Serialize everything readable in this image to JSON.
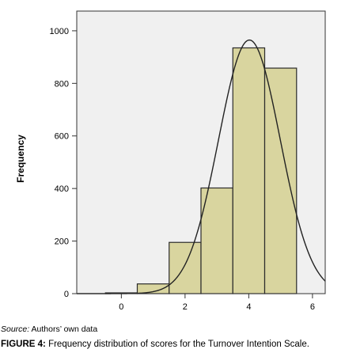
{
  "chart_data": {
    "type": "bar",
    "subtype": "histogram",
    "bins": [
      {
        "center": 0,
        "value": 3
      },
      {
        "center": 1,
        "value": 37
      },
      {
        "center": 2,
        "value": 195
      },
      {
        "center": 3,
        "value": 402
      },
      {
        "center": 4,
        "value": 935
      },
      {
        "center": 5,
        "value": 858
      }
    ],
    "bin_width": 1,
    "normal_curve": {
      "mean": 4.02,
      "sd": 0.97,
      "peak": 965
    },
    "xlim": [
      -1.4,
      6.4
    ],
    "ylim": [
      0,
      1075
    ],
    "x_ticks": [
      0,
      2,
      4,
      6
    ],
    "y_ticks": [
      0,
      200,
      400,
      600,
      800,
      1000
    ],
    "ylabel": "Frequency",
    "xlabel": "",
    "grid": false,
    "colors": {
      "bar_fill": "#d9d59f",
      "bar_stroke": "#2b2b2b",
      "plot_bg": "#f0f0f0",
      "curve": "#222222"
    }
  },
  "source": {
    "label": "Source:",
    "text": "Authors’ own data"
  },
  "caption": {
    "label": "FIGURE 4:",
    "text": "Frequency distribution of scores for the Turnover Intention Scale."
  }
}
